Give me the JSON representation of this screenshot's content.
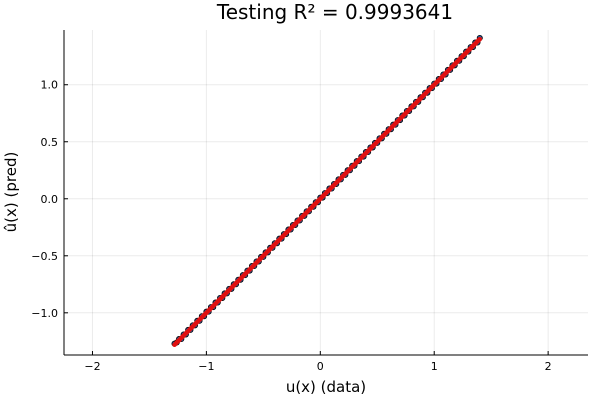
{
  "chart_data": {
    "type": "scatter",
    "title": "Testing R² = 0.9993641",
    "xlabel": "u(x) (data)",
    "ylabel": "û(x) (pred)",
    "xlim": [
      -2.25,
      2.35
    ],
    "ylim": [
      -1.37,
      1.48
    ],
    "xticks": [
      -2,
      -1,
      0,
      1,
      2
    ],
    "xtick_labels": [
      "−2",
      "−1",
      "0",
      "1",
      "2"
    ],
    "yticks": [
      -1.0,
      -0.5,
      0.0,
      0.5,
      1.0
    ],
    "ytick_labels": [
      "−1.0",
      "−0.5",
      "0.0",
      "0.5",
      "1.0"
    ],
    "grid": true,
    "legend": "none",
    "x_range_of_points": [
      -1.28,
      1.4
    ],
    "series": [
      {
        "kind": "scatter",
        "color": "#1f5fa8",
        "edge_color": "#000000",
        "x": [
          -1.28,
          -1.26,
          -1.24,
          -1.22,
          -1.2,
          -1.18,
          -1.16,
          -1.14,
          -1.12,
          -1.1,
          -1.08,
          -1.06,
          -1.04,
          -1.02,
          -1.0,
          -0.98,
          -0.96,
          -0.94,
          -0.92,
          -0.9,
          -0.88,
          -0.86,
          -0.84,
          -0.82,
          -0.8,
          -0.78,
          -0.76,
          -0.74,
          -0.72,
          -0.7,
          -0.68,
          -0.66,
          -0.64,
          -0.62,
          -0.6,
          -0.58,
          -0.56,
          -0.54,
          -0.52,
          -0.5,
          -0.48,
          -0.46,
          -0.44,
          -0.42,
          -0.4,
          -0.38,
          -0.36,
          -0.34,
          -0.32,
          -0.3,
          -0.28,
          -0.26,
          -0.24,
          -0.22,
          -0.2,
          -0.18,
          -0.16,
          -0.14,
          -0.12,
          -0.1,
          -0.08,
          -0.06,
          -0.04,
          -0.02,
          0.0,
          0.02,
          0.04,
          0.06,
          0.08,
          0.1,
          0.12,
          0.14,
          0.16,
          0.18,
          0.2,
          0.22,
          0.24,
          0.26,
          0.28,
          0.3,
          0.32,
          0.34,
          0.36,
          0.38,
          0.4,
          0.42,
          0.44,
          0.46,
          0.48,
          0.5,
          0.52,
          0.54,
          0.56,
          0.58,
          0.6,
          0.62,
          0.64,
          0.66,
          0.68,
          0.7,
          0.72,
          0.74,
          0.76,
          0.78,
          0.8,
          0.82,
          0.84,
          0.86,
          0.88,
          0.9,
          0.92,
          0.94,
          0.96,
          0.98,
          1.0,
          1.02,
          1.04,
          1.06,
          1.08,
          1.1,
          1.12,
          1.14,
          1.16,
          1.18,
          1.2,
          1.22,
          1.24,
          1.26,
          1.28,
          1.3,
          1.32,
          1.34,
          1.36,
          1.38,
          1.4
        ],
        "y": [
          -1.27,
          -1.26,
          -1.23,
          -1.23,
          -1.19,
          -1.19,
          -1.15,
          -1.15,
          -1.11,
          -1.11,
          -1.07,
          -1.07,
          -1.03,
          -1.03,
          -0.99,
          -0.99,
          -0.95,
          -0.95,
          -0.91,
          -0.91,
          -0.87,
          -0.87,
          -0.83,
          -0.83,
          -0.79,
          -0.79,
          -0.75,
          -0.75,
          -0.71,
          -0.71,
          -0.67,
          -0.67,
          -0.63,
          -0.63,
          -0.59,
          -0.59,
          -0.55,
          -0.55,
          -0.51,
          -0.51,
          -0.47,
          -0.47,
          -0.43,
          -0.43,
          -0.39,
          -0.39,
          -0.35,
          -0.35,
          -0.31,
          -0.31,
          -0.27,
          -0.27,
          -0.23,
          -0.23,
          -0.19,
          -0.19,
          -0.15,
          -0.15,
          -0.11,
          -0.11,
          -0.07,
          -0.07,
          -0.03,
          -0.03,
          0.01,
          0.01,
          0.05,
          0.05,
          0.09,
          0.09,
          0.13,
          0.13,
          0.17,
          0.17,
          0.21,
          0.21,
          0.25,
          0.25,
          0.29,
          0.29,
          0.33,
          0.33,
          0.37,
          0.37,
          0.41,
          0.41,
          0.45,
          0.45,
          0.49,
          0.49,
          0.53,
          0.53,
          0.57,
          0.57,
          0.61,
          0.61,
          0.65,
          0.65,
          0.69,
          0.69,
          0.73,
          0.73,
          0.77,
          0.77,
          0.81,
          0.81,
          0.85,
          0.85,
          0.89,
          0.89,
          0.93,
          0.93,
          0.97,
          0.97,
          1.01,
          1.01,
          1.05,
          1.05,
          1.09,
          1.09,
          1.13,
          1.13,
          1.17,
          1.17,
          1.21,
          1.21,
          1.25,
          1.25,
          1.29,
          1.29,
          1.33,
          1.33,
          1.37,
          1.37,
          1.41
        ]
      },
      {
        "kind": "line",
        "color": "#e01010",
        "x": [
          -1.28,
          1.4
        ],
        "y": [
          -1.28,
          1.4
        ]
      }
    ]
  }
}
